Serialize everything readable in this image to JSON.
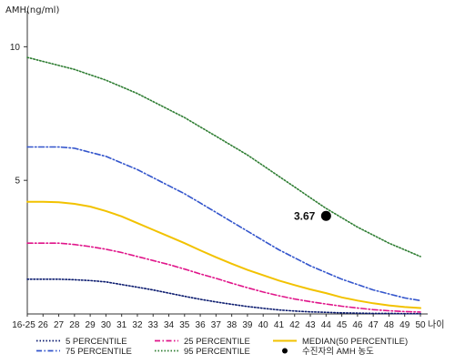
{
  "chart_data": {
    "type": "line",
    "ylabel": "AMH(ng/ml)",
    "xlabel": "나이",
    "categories": [
      "16-25",
      "26",
      "27",
      "28",
      "29",
      "30",
      "31",
      "32",
      "33",
      "34",
      "35",
      "36",
      "37",
      "38",
      "39",
      "40",
      "41",
      "42",
      "43",
      "44",
      "45",
      "46",
      "47",
      "48",
      "49",
      "50"
    ],
    "yticks": [
      5,
      10
    ],
    "ylim": [
      0,
      11
    ],
    "series": [
      {
        "name": "95 PERCENTILE",
        "color": "#2e7d32",
        "style": "dotted",
        "values": [
          9.6,
          9.45,
          9.3,
          9.15,
          8.95,
          8.75,
          8.5,
          8.25,
          7.95,
          7.65,
          7.35,
          7.0,
          6.65,
          6.3,
          5.95,
          5.55,
          5.15,
          4.75,
          4.35,
          3.95,
          3.6,
          3.25,
          2.95,
          2.65,
          2.4,
          2.15
        ]
      },
      {
        "name": "75 PERCENTILE",
        "color": "#3355cc",
        "style": "dashdot",
        "values": [
          6.25,
          6.25,
          6.25,
          6.2,
          6.05,
          5.9,
          5.65,
          5.4,
          5.1,
          4.8,
          4.5,
          4.15,
          3.8,
          3.45,
          3.1,
          2.75,
          2.4,
          2.1,
          1.8,
          1.55,
          1.3,
          1.1,
          0.9,
          0.75,
          0.6,
          0.5
        ]
      },
      {
        "name": "MEDIAN(50 PERCENTILE)",
        "color": "#f2c200",
        "style": "solid",
        "values": [
          4.2,
          4.2,
          4.18,
          4.12,
          4.02,
          3.85,
          3.65,
          3.4,
          3.15,
          2.9,
          2.65,
          2.38,
          2.12,
          1.88,
          1.65,
          1.45,
          1.25,
          1.08,
          0.92,
          0.78,
          0.62,
          0.5,
          0.4,
          0.32,
          0.26,
          0.22
        ]
      },
      {
        "name": "25 PERCENTILE",
        "color": "#e0158a",
        "style": "dashdot",
        "values": [
          2.65,
          2.65,
          2.65,
          2.6,
          2.52,
          2.42,
          2.3,
          2.15,
          2.0,
          1.85,
          1.68,
          1.5,
          1.33,
          1.15,
          0.98,
          0.82,
          0.68,
          0.56,
          0.46,
          0.37,
          0.29,
          0.22,
          0.16,
          0.12,
          0.09,
          0.07
        ]
      },
      {
        "name": "5 PERCENTILE",
        "color": "#0a1a6e",
        "style": "dotted",
        "values": [
          1.3,
          1.3,
          1.3,
          1.28,
          1.25,
          1.2,
          1.1,
          1.0,
          0.9,
          0.78,
          0.66,
          0.55,
          0.45,
          0.36,
          0.28,
          0.21,
          0.15,
          0.11,
          0.08,
          0.06,
          0.04,
          0.03,
          0.02,
          0.02,
          0.01,
          0.01
        ]
      }
    ],
    "highlight": {
      "label": "3.67",
      "category": "44",
      "value": 3.67,
      "legend": "수진자의 AMH 농도"
    },
    "legend_rows": [
      [
        "5 PERCENTILE",
        "25 PERCENTILE",
        "MEDIAN(50 PERCENTILE)"
      ],
      [
        "75 PERCENTILE",
        "95 PERCENTILE",
        "수진자의 AMH 농도"
      ]
    ],
    "grid": false,
    "legend_position": "bottom"
  }
}
